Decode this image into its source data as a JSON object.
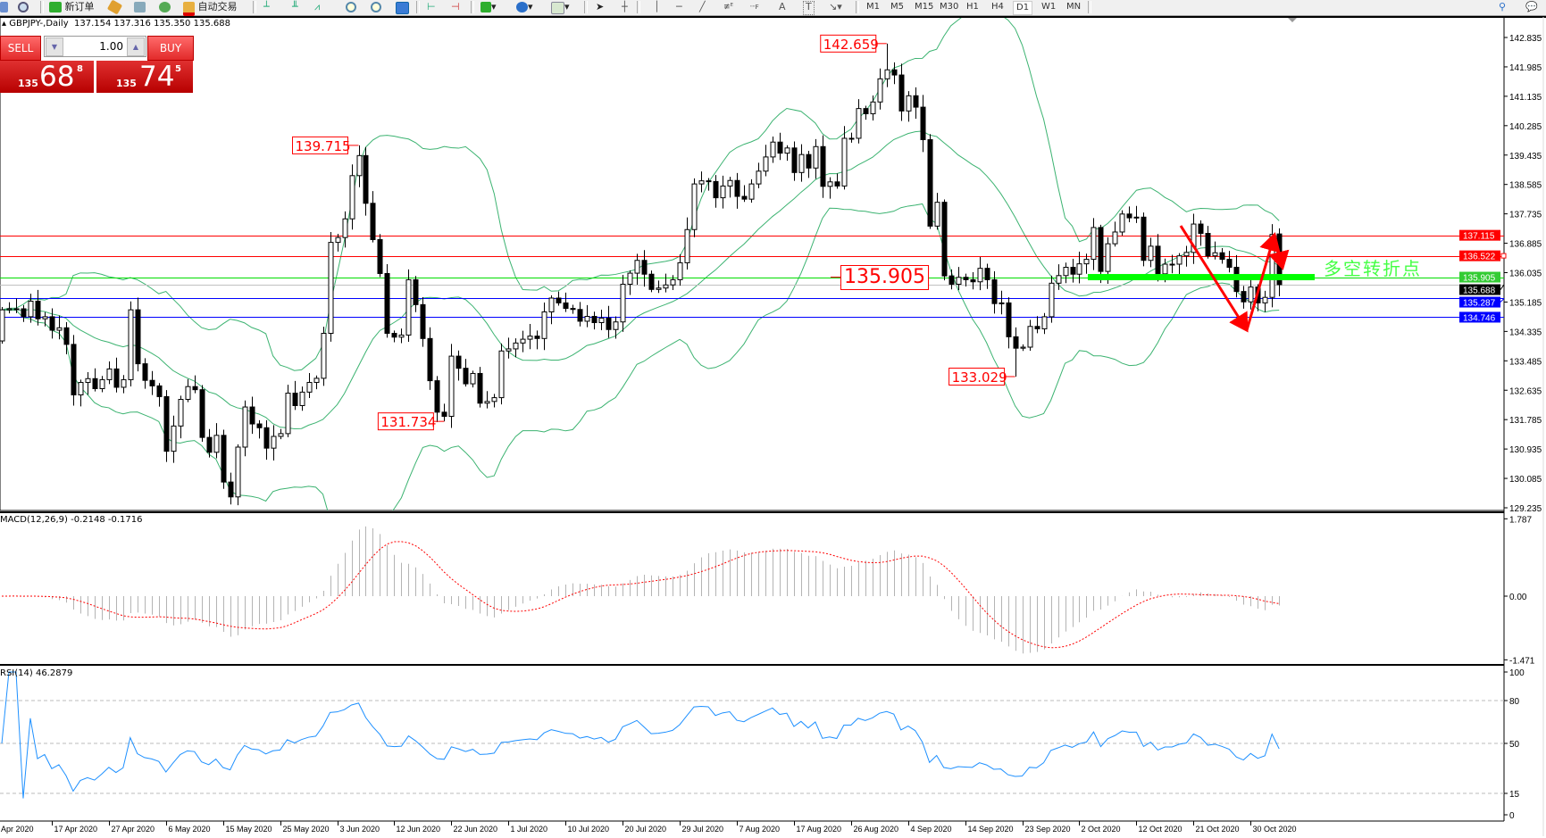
{
  "toolbar": {
    "new_order": "新订单",
    "auto_trading": "自动交易",
    "timeframes": [
      "M1",
      "M5",
      "M15",
      "M30",
      "H1",
      "H4",
      "D1",
      "W1",
      "MN"
    ],
    "active_timeframe": "D1",
    "text_tool": "A",
    "label_tool": "T"
  },
  "chart": {
    "title": "GBPJPY-,Daily",
    "ohlc": "137.154 137.316 135.350 135.688"
  },
  "one_click": {
    "sell_label": "SELL",
    "buy_label": "BUY",
    "volume": "1.00",
    "sell_price": {
      "prefix": "135",
      "main": "68",
      "sup": "8"
    },
    "buy_price": {
      "prefix": "135",
      "main": "74",
      "sup": "5"
    }
  },
  "indicators": {
    "macd_label": "MACD(12,26,9) -0.2148 -0.1716",
    "rsi_label": "RSI(14) 46.2879"
  },
  "annotation_text": "多空转折点",
  "colors": {
    "bollinger": "#3cb371",
    "macd_hist": "#b4b4b4",
    "macd_signal": "#ff0000",
    "rsi": "#1e90ff",
    "resistance": "#ff0000",
    "pivot": "#00ee00",
    "support": "#0000ff",
    "bid": "#c0c0c0"
  },
  "chart_data": {
    "type": "candlestick",
    "symbol": "GBPJPY-",
    "timeframe": "Daily",
    "last_bar": {
      "open": 137.154,
      "high": 137.316,
      "low": 135.35,
      "close": 135.688
    },
    "closes": [
      134.96,
      134.99,
      134.99,
      134.76,
      135.21,
      134.7,
      134.76,
      134.37,
      134.44,
      133.96,
      132.5,
      132.86,
      132.97,
      132.68,
      132.94,
      133.25,
      132.72,
      132.94,
      134.96,
      133.4,
      132.92,
      132.76,
      132.45,
      130.87,
      131.6,
      132.37,
      132.74,
      132.65,
      131.27,
      130.84,
      131.33,
      129.98,
      129.55,
      130.99,
      132.15,
      131.66,
      131.55,
      130.96,
      131.3,
      131.38,
      132.55,
      132.19,
      132.58,
      132.86,
      132.98,
      134.28,
      136.91,
      137.05,
      137.59,
      138.84,
      139.42,
      138.04,
      136.99,
      136.01,
      134.28,
      134.17,
      134.23,
      135.83,
      135.11,
      134.13,
      132.91,
      132.0,
      131.88,
      133.62,
      133.27,
      132.82,
      133.12,
      132.26,
      132.31,
      132.42,
      133.77,
      133.83,
      134.0,
      134.11,
      134.2,
      134.13,
      134.9,
      135.3,
      135.16,
      135.0,
      134.97,
      134.63,
      134.77,
      134.59,
      134.72,
      134.39,
      134.61,
      135.7,
      136.02,
      136.39,
      135.99,
      135.55,
      135.59,
      135.68,
      135.83,
      136.32,
      137.28,
      138.6,
      138.69,
      138.67,
      138.2,
      138.54,
      138.7,
      138.24,
      138.16,
      138.6,
      138.97,
      139.38,
      139.81,
      139.49,
      139.64,
      138.93,
      139.45,
      139.06,
      139.68,
      138.53,
      138.66,
      138.54,
      139.92,
      139.92,
      140.78,
      140.63,
      140.97,
      141.64,
      141.9,
      141.75,
      140.71,
      141.15,
      140.82,
      139.88,
      137.38,
      138.07,
      135.94,
      135.7,
      135.9,
      135.83,
      135.77,
      136.16,
      135.83,
      135.14,
      135.16,
      134.18,
      133.85,
      133.88,
      134.48,
      134.41,
      134.76,
      135.73,
      135.95,
      136.19,
      135.99,
      136.29,
      136.42,
      137.34,
      136.07,
      136.87,
      137.21,
      137.73,
      137.62,
      137.64,
      136.39,
      136.8,
      136.0,
      136.28,
      136.28,
      136.52,
      136.62,
      137.44,
      137.17,
      136.52,
      136.61,
      136.42,
      136.19,
      135.49,
      135.19,
      135.62,
      135.16,
      135.32,
      137.14,
      135.69
    ],
    "marked_extremes": [
      {
        "bar": 50,
        "kind": "high",
        "value": "139.715"
      },
      {
        "bar": 62,
        "kind": "low",
        "value": "131.734"
      },
      {
        "bar": 124,
        "kind": "high",
        "value": "142.659"
      },
      {
        "bar": 142,
        "kind": "low",
        "value": "133.029"
      }
    ],
    "pivot_label": "135.905",
    "ylim": [
      129.235,
      142.835
    ],
    "y_ticks": [
      "142.835",
      "141.985",
      "141.135",
      "140.285",
      "139.435",
      "138.585",
      "137.735",
      "136.885",
      "136.035",
      "135.185",
      "134.335",
      "133.485",
      "132.635",
      "131.785",
      "130.935",
      "130.085",
      "129.235"
    ],
    "price_lines": [
      {
        "price": "137.115",
        "color": "#ff0000",
        "label_bg": "#ff0000"
      },
      {
        "price": "136.522",
        "color": "#ff0000",
        "label_bg": "#ff0000"
      },
      {
        "price": "135.905",
        "color": "#00dd00",
        "label_bg": "#33cc33"
      },
      {
        "price": "135.688",
        "color": "#c0c0c0",
        "label_bg": "#000000"
      },
      {
        "price": "135.287",
        "color": "#0000ff",
        "label_bg": "#0000ff"
      },
      {
        "price": "134.746",
        "color": "#0000ff",
        "label_bg": "#0000ff"
      }
    ],
    "x_first_label": "Apr 2020",
    "x_labels": [
      "17 Apr 2020",
      "27 Apr 2020",
      "6 May 2020",
      "15 May 2020",
      "25 May 2020",
      "3 Jun 2020",
      "12 Jun 2020",
      "22 Jun 2020",
      "1 Jul 2020",
      "10 Jul 2020",
      "20 Jul 2020",
      "29 Jul 2020",
      "7 Aug 2020",
      "17 Aug 2020",
      "26 Aug 2020",
      "4 Sep 2020",
      "14 Sep 2020",
      "23 Sep 2020",
      "2 Oct 2020",
      "12 Oct 2020",
      "21 Oct 2020",
      "30 Oct 2020"
    ],
    "macd_axis": [
      "1.787",
      "0.00",
      "-1.471"
    ],
    "macd_range": [
      -1.471,
      1.787
    ],
    "rsi_axis": [
      "100",
      "80",
      "50",
      "15",
      "0"
    ],
    "rsi_levels": [
      80,
      50,
      15
    ]
  }
}
